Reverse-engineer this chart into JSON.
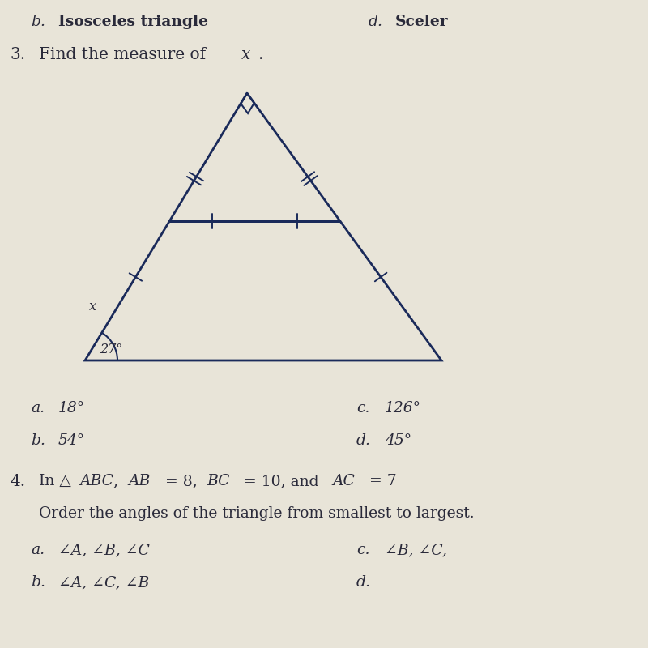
{
  "background_color": "#e8e4d8",
  "line_color": "#1a2a5a",
  "text_color": "#2a2a3a",
  "top_left_letter": "b.",
  "top_left_text": "Isosceles triangle",
  "top_right_letter": "d.",
  "top_right_text": "Sceler",
  "q3_number": "3.",
  "q3_text": "Find the measure of ",
  "q3_var": "x",
  "q3_period": ".",
  "angle_label": "27°",
  "x_label": "x",
  "ans_a": "18°",
  "ans_b": "54°",
  "ans_c": "126°",
  "ans_d": "45°",
  "q4_number": "4.",
  "q4_line1_pre": "In △",
  "q4_line1_abc": "ABC",
  "q4_line1_post": ",  ",
  "q4_line1_AB": "AB",
  "q4_line1_eq1": " = 8, ",
  "q4_line1_BC": "BC",
  "q4_line1_eq2": " = 10, and ",
  "q4_line1_AC": "AC",
  "q4_line1_eq3": " = 7",
  "q4_line2": "Order the angles of the triangle from smallest to largest.",
  "q4_ans_a": "∠A, ∠B, ∠C",
  "q4_ans_b": "∠A, ∠C, ∠B",
  "q4_ans_c": "∠B, ∠C,",
  "q4_ans_d": "",
  "font_size_text": 13.5,
  "font_size_q": 14.5
}
